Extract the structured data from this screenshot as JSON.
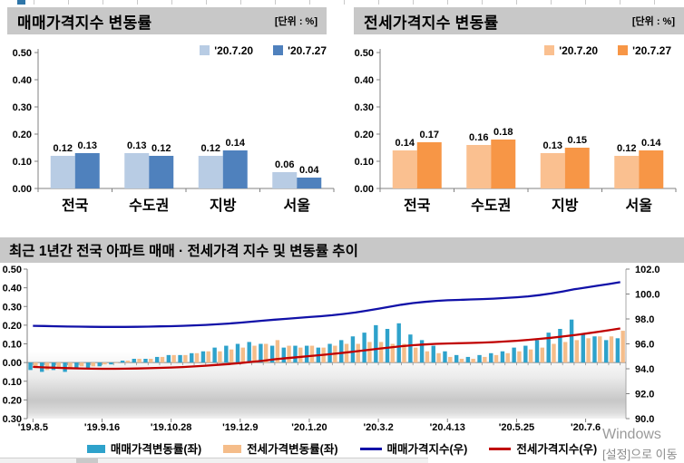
{
  "sale_panel": {
    "title": "매매가격지수 변동률",
    "unit_label": "[단위 : %]"
  },
  "jeonse_panel": {
    "title": "전세가격지수 변동률",
    "unit_label": "[단위 : %]"
  },
  "watermark": {
    "line1": "Windows",
    "line2": "[설정]으로 이동"
  },
  "chart_data": [
    {
      "id": "sale-change-bars",
      "type": "bar",
      "title": "매매가격지수 변동률",
      "unit": "[단위 : %]",
      "categories": [
        "전국",
        "수도권",
        "지방",
        "서울"
      ],
      "series": [
        {
          "name": "'20.7.20",
          "color": "#b8cce4",
          "values": [
            0.12,
            0.13,
            0.12,
            0.06
          ]
        },
        {
          "name": "'20.7.27",
          "color": "#4f81bd",
          "values": [
            0.13,
            0.12,
            0.14,
            0.04
          ]
        }
      ],
      "ylim": [
        0,
        0.5
      ],
      "yticks": [
        "0.50",
        "0.40",
        "0.30",
        "0.20",
        "0.10",
        "0.00"
      ],
      "grid": false,
      "legend_position": "top-right"
    },
    {
      "id": "jeonse-change-bars",
      "type": "bar",
      "title": "전세가격지수 변동률",
      "unit": "[단위 : %]",
      "categories": [
        "전국",
        "수도권",
        "지방",
        "서울"
      ],
      "series": [
        {
          "name": "'20.7.20",
          "color": "#fac090",
          "values": [
            0.14,
            0.16,
            0.13,
            0.12
          ]
        },
        {
          "name": "'20.7.27",
          "color": "#f79646",
          "values": [
            0.17,
            0.18,
            0.15,
            0.14
          ]
        }
      ],
      "ylim": [
        0,
        0.5
      ],
      "yticks": [
        "0.50",
        "0.40",
        "0.30",
        "0.20",
        "0.10",
        "0.00"
      ],
      "grid": false,
      "legend_position": "top-right"
    },
    {
      "id": "trend-combo",
      "type": "line",
      "title": "최근 1년간 전국 아파트 매매 · 전세가격 지수 및 변동률 추이",
      "n_points": 52,
      "x_tick_every": 6,
      "x_tick_labels": [
        "'19.8.5",
        "'19.9.16",
        "'19.10.28",
        "'19.12.9",
        "'20.1.20",
        "'20.3.2",
        "'20.4.13",
        "'20.5.25",
        "'20.7.6"
      ],
      "left_axis": {
        "range": [
          -0.3,
          0.5
        ],
        "ticks": [
          "0.50",
          "0.40",
          "0.30",
          "0.20",
          "0.10",
          "0.00",
          "0.10",
          "0.20",
          "0.30"
        ]
      },
      "right_axis": {
        "range": [
          90.0,
          102.0
        ],
        "ticks": [
          "102.0",
          "100.0",
          "98.0",
          "96.0",
          "94.0",
          "92.0",
          "90.0"
        ]
      },
      "grid": false,
      "legend_position": "bottom",
      "series": [
        {
          "id": "sale-change",
          "legend": "매매가격변동률(좌)",
          "type": "bar",
          "axis": "left",
          "color": "#2ea2cb",
          "values": [
            -0.04,
            -0.05,
            -0.04,
            -0.05,
            -0.03,
            -0.03,
            -0.02,
            -0.01,
            0.01,
            0.02,
            0.02,
            0.03,
            0.04,
            0.04,
            0.05,
            0.06,
            0.08,
            0.09,
            0.1,
            0.11,
            0.1,
            0.09,
            0.08,
            0.09,
            0.09,
            0.08,
            0.1,
            0.12,
            0.14,
            0.16,
            0.2,
            0.18,
            0.21,
            0.15,
            0.12,
            0.09,
            0.06,
            0.04,
            0.03,
            0.04,
            0.05,
            0.06,
            0.08,
            0.09,
            0.12,
            0.16,
            0.18,
            0.23,
            0.15,
            0.14,
            0.12,
            0.13
          ]
        },
        {
          "id": "jeonse-change",
          "legend": "전세가격변동률(좌)",
          "type": "bar",
          "axis": "left",
          "color": "#f5bd8a",
          "values": [
            -0.03,
            -0.04,
            -0.03,
            -0.03,
            -0.02,
            -0.02,
            -0.01,
            0.0,
            0.01,
            0.02,
            0.02,
            0.03,
            0.04,
            0.04,
            0.05,
            0.06,
            0.06,
            0.07,
            0.08,
            0.09,
            0.1,
            0.12,
            0.09,
            0.08,
            0.09,
            0.08,
            0.09,
            0.1,
            0.1,
            0.11,
            0.11,
            0.1,
            0.1,
            0.08,
            0.06,
            0.05,
            0.03,
            0.02,
            0.02,
            0.03,
            0.04,
            0.05,
            0.06,
            0.07,
            0.08,
            0.1,
            0.11,
            0.12,
            0.13,
            0.14,
            0.14,
            0.17
          ]
        },
        {
          "id": "sale-index",
          "legend": "매매가격지수(우)",
          "type": "line",
          "axis": "right",
          "color": "#1111a8",
          "values": [
            97.45,
            97.43,
            97.41,
            97.39,
            97.38,
            97.37,
            97.36,
            97.36,
            97.36,
            97.37,
            97.38,
            97.4,
            97.42,
            97.45,
            97.48,
            97.52,
            97.57,
            97.63,
            97.7,
            97.78,
            97.86,
            97.94,
            98.01,
            98.08,
            98.15,
            98.22,
            98.3,
            98.4,
            98.52,
            98.66,
            98.82,
            98.98,
            99.14,
            99.27,
            99.37,
            99.45,
            99.5,
            99.53,
            99.56,
            99.59,
            99.63,
            99.68,
            99.74,
            99.81,
            99.91,
            100.04,
            100.2,
            100.38,
            100.52,
            100.66,
            100.8,
            100.95
          ]
        },
        {
          "id": "jeonse-index",
          "legend": "전세가격지수(우)",
          "type": "line",
          "axis": "right",
          "color": "#c00000",
          "values": [
            94.15,
            94.11,
            94.08,
            94.05,
            94.03,
            94.01,
            94.0,
            94.0,
            94.01,
            94.02,
            94.04,
            94.07,
            94.1,
            94.14,
            94.19,
            94.25,
            94.31,
            94.38,
            94.46,
            94.55,
            94.65,
            94.76,
            94.85,
            94.93,
            95.02,
            95.1,
            95.19,
            95.29,
            95.39,
            95.5,
            95.61,
            95.71,
            95.81,
            95.89,
            95.95,
            96.0,
            96.03,
            96.05,
            96.07,
            96.1,
            96.14,
            96.19,
            96.25,
            96.32,
            96.4,
            96.49,
            96.59,
            96.7,
            96.82,
            96.95,
            97.09,
            97.24
          ]
        }
      ]
    }
  ]
}
